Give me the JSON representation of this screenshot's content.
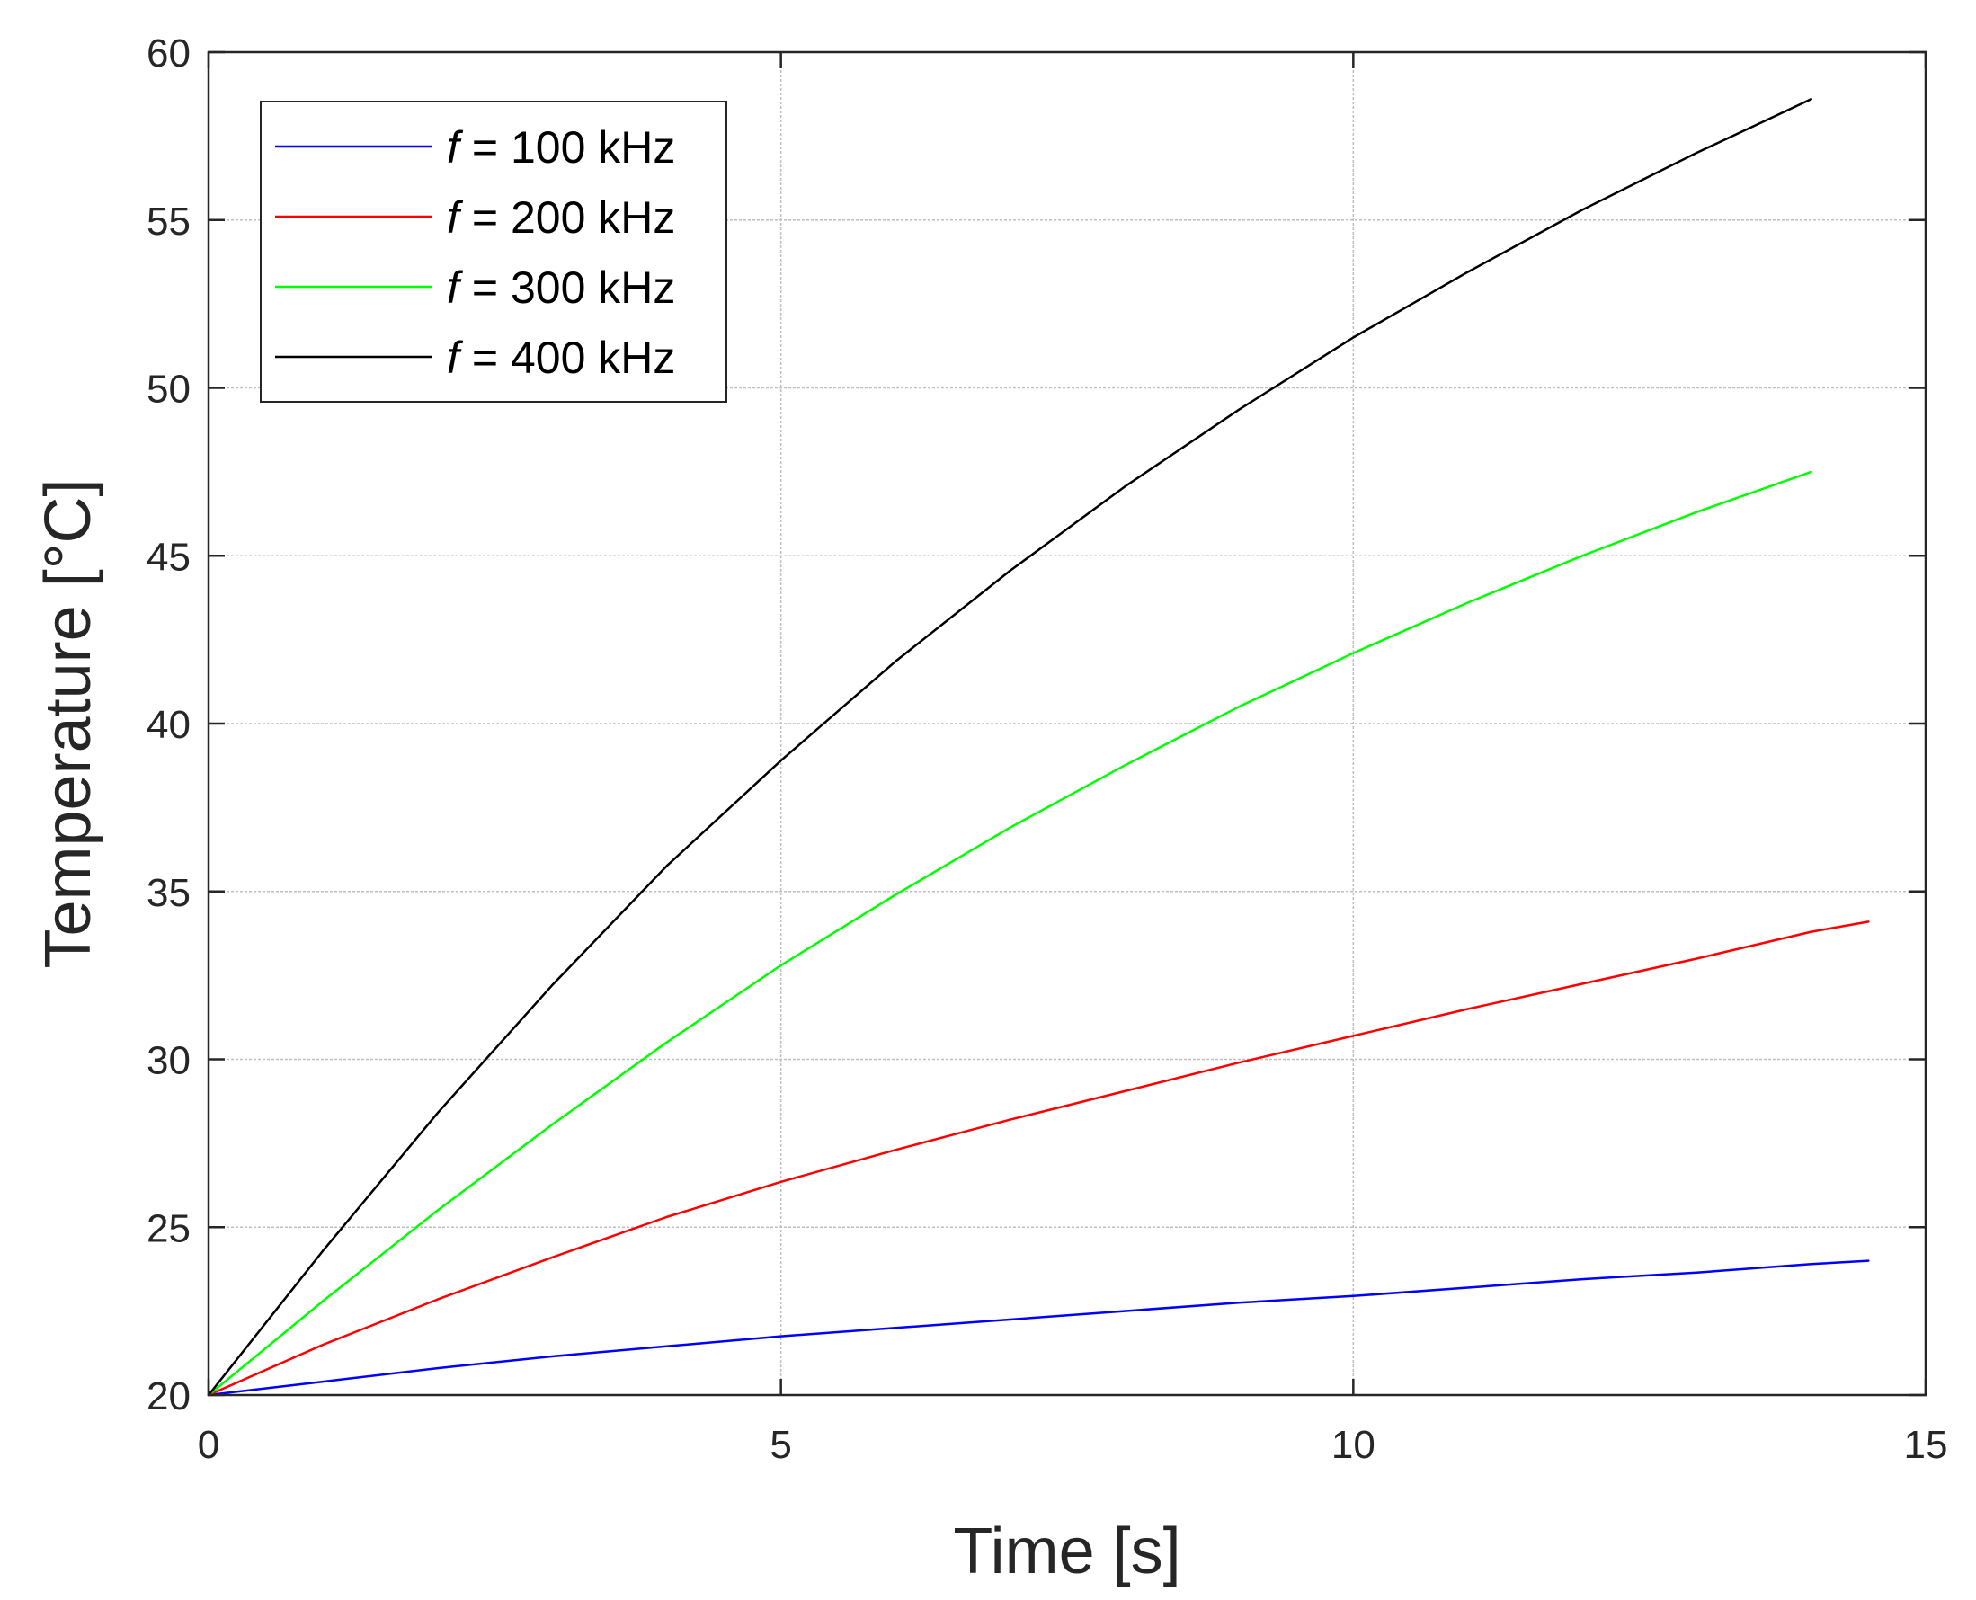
{
  "chart_data": {
    "type": "line",
    "title": "",
    "xlabel": "Time [s]",
    "ylabel": "Temperature [°C]",
    "xlim": [
      0,
      15
    ],
    "ylim": [
      20,
      60
    ],
    "xticks": [
      0,
      5,
      10,
      15
    ],
    "yticks": [
      20,
      25,
      30,
      35,
      40,
      45,
      50,
      55,
      60
    ],
    "grid": true,
    "legend_position": "top-left",
    "series": [
      {
        "name": "f = 100 kHz",
        "symbol": "f",
        "label": "= 100 kHz",
        "color": "#0000ff",
        "x": [
          0,
          1,
          2,
          3,
          4,
          5,
          6,
          7,
          8,
          9,
          10,
          11,
          12,
          13,
          14,
          14.5
        ],
        "y": [
          20,
          20.4,
          20.8,
          21.15,
          21.45,
          21.75,
          22.0,
          22.25,
          22.5,
          22.75,
          22.95,
          23.2,
          23.45,
          23.65,
          23.9,
          24.0
        ]
      },
      {
        "name": "f = 200 kHz",
        "symbol": "f",
        "label": "= 200 kHz",
        "color": "#ff0000",
        "x": [
          0,
          1,
          2,
          3,
          4,
          5,
          6,
          7,
          8,
          9,
          10,
          11,
          12,
          13,
          14,
          14.5
        ],
        "y": [
          20,
          21.5,
          22.85,
          24.1,
          25.3,
          26.35,
          27.3,
          28.2,
          29.05,
          29.9,
          30.7,
          31.5,
          32.25,
          33.0,
          33.8,
          34.1
        ]
      },
      {
        "name": "f = 300 kHz",
        "symbol": "f",
        "label": "= 300 kHz",
        "color": "#00ff00",
        "x": [
          0,
          1,
          2,
          3,
          4,
          5,
          6,
          7,
          8,
          9,
          10,
          11,
          12,
          13,
          14
        ],
        "y": [
          20,
          22.8,
          25.5,
          28.05,
          30.5,
          32.8,
          34.9,
          36.9,
          38.75,
          40.5,
          42.1,
          43.6,
          45.0,
          46.3,
          47.5
        ]
      },
      {
        "name": "f = 400 kHz",
        "symbol": "f",
        "label": "= 400 kHz",
        "color": "#000000",
        "x": [
          0,
          1,
          2,
          3,
          4,
          5,
          6,
          7,
          8,
          9,
          10,
          11,
          12,
          13,
          14
        ],
        "y": [
          20,
          24.3,
          28.4,
          32.2,
          35.75,
          38.9,
          41.85,
          44.55,
          47.05,
          49.35,
          51.5,
          53.45,
          55.3,
          57.0,
          58.6
        ]
      }
    ]
  }
}
